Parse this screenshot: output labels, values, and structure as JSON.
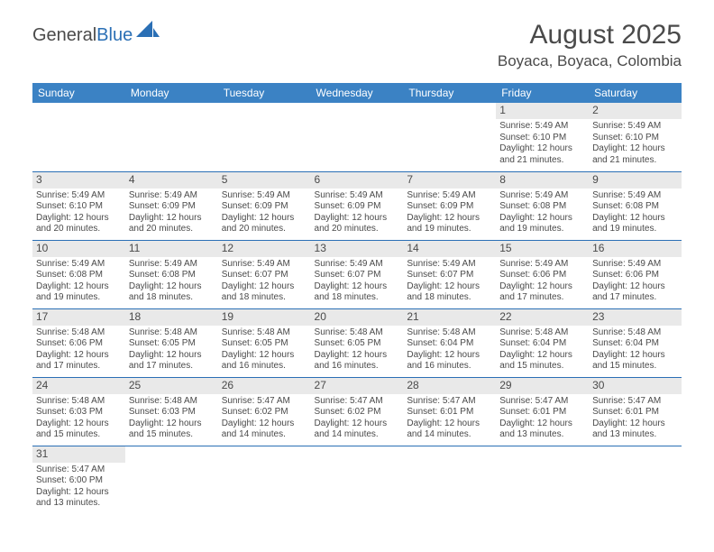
{
  "logo": {
    "part1": "General",
    "part2": "Blue"
  },
  "title": "August 2025",
  "location": "Boyaca, Boyaca, Colombia",
  "colors": {
    "header_bg": "#3b82c4",
    "header_text": "#ffffff",
    "rule": "#2a6fb5",
    "daybar": "#e9e9e9",
    "text": "#4a4a4a",
    "logo_blue": "#2a6fb5"
  },
  "weekdays": [
    "Sunday",
    "Monday",
    "Tuesday",
    "Wednesday",
    "Thursday",
    "Friday",
    "Saturday"
  ],
  "weeks": [
    [
      null,
      null,
      null,
      null,
      null,
      {
        "n": "1",
        "sr": "Sunrise: 5:49 AM",
        "ss": "Sunset: 6:10 PM",
        "d1": "Daylight: 12 hours",
        "d2": "and 21 minutes."
      },
      {
        "n": "2",
        "sr": "Sunrise: 5:49 AM",
        "ss": "Sunset: 6:10 PM",
        "d1": "Daylight: 12 hours",
        "d2": "and 21 minutes."
      }
    ],
    [
      {
        "n": "3",
        "sr": "Sunrise: 5:49 AM",
        "ss": "Sunset: 6:10 PM",
        "d1": "Daylight: 12 hours",
        "d2": "and 20 minutes."
      },
      {
        "n": "4",
        "sr": "Sunrise: 5:49 AM",
        "ss": "Sunset: 6:09 PM",
        "d1": "Daylight: 12 hours",
        "d2": "and 20 minutes."
      },
      {
        "n": "5",
        "sr": "Sunrise: 5:49 AM",
        "ss": "Sunset: 6:09 PM",
        "d1": "Daylight: 12 hours",
        "d2": "and 20 minutes."
      },
      {
        "n": "6",
        "sr": "Sunrise: 5:49 AM",
        "ss": "Sunset: 6:09 PM",
        "d1": "Daylight: 12 hours",
        "d2": "and 20 minutes."
      },
      {
        "n": "7",
        "sr": "Sunrise: 5:49 AM",
        "ss": "Sunset: 6:09 PM",
        "d1": "Daylight: 12 hours",
        "d2": "and 19 minutes."
      },
      {
        "n": "8",
        "sr": "Sunrise: 5:49 AM",
        "ss": "Sunset: 6:08 PM",
        "d1": "Daylight: 12 hours",
        "d2": "and 19 minutes."
      },
      {
        "n": "9",
        "sr": "Sunrise: 5:49 AM",
        "ss": "Sunset: 6:08 PM",
        "d1": "Daylight: 12 hours",
        "d2": "and 19 minutes."
      }
    ],
    [
      {
        "n": "10",
        "sr": "Sunrise: 5:49 AM",
        "ss": "Sunset: 6:08 PM",
        "d1": "Daylight: 12 hours",
        "d2": "and 19 minutes."
      },
      {
        "n": "11",
        "sr": "Sunrise: 5:49 AM",
        "ss": "Sunset: 6:08 PM",
        "d1": "Daylight: 12 hours",
        "d2": "and 18 minutes."
      },
      {
        "n": "12",
        "sr": "Sunrise: 5:49 AM",
        "ss": "Sunset: 6:07 PM",
        "d1": "Daylight: 12 hours",
        "d2": "and 18 minutes."
      },
      {
        "n": "13",
        "sr": "Sunrise: 5:49 AM",
        "ss": "Sunset: 6:07 PM",
        "d1": "Daylight: 12 hours",
        "d2": "and 18 minutes."
      },
      {
        "n": "14",
        "sr": "Sunrise: 5:49 AM",
        "ss": "Sunset: 6:07 PM",
        "d1": "Daylight: 12 hours",
        "d2": "and 18 minutes."
      },
      {
        "n": "15",
        "sr": "Sunrise: 5:49 AM",
        "ss": "Sunset: 6:06 PM",
        "d1": "Daylight: 12 hours",
        "d2": "and 17 minutes."
      },
      {
        "n": "16",
        "sr": "Sunrise: 5:49 AM",
        "ss": "Sunset: 6:06 PM",
        "d1": "Daylight: 12 hours",
        "d2": "and 17 minutes."
      }
    ],
    [
      {
        "n": "17",
        "sr": "Sunrise: 5:48 AM",
        "ss": "Sunset: 6:06 PM",
        "d1": "Daylight: 12 hours",
        "d2": "and 17 minutes."
      },
      {
        "n": "18",
        "sr": "Sunrise: 5:48 AM",
        "ss": "Sunset: 6:05 PM",
        "d1": "Daylight: 12 hours",
        "d2": "and 17 minutes."
      },
      {
        "n": "19",
        "sr": "Sunrise: 5:48 AM",
        "ss": "Sunset: 6:05 PM",
        "d1": "Daylight: 12 hours",
        "d2": "and 16 minutes."
      },
      {
        "n": "20",
        "sr": "Sunrise: 5:48 AM",
        "ss": "Sunset: 6:05 PM",
        "d1": "Daylight: 12 hours",
        "d2": "and 16 minutes."
      },
      {
        "n": "21",
        "sr": "Sunrise: 5:48 AM",
        "ss": "Sunset: 6:04 PM",
        "d1": "Daylight: 12 hours",
        "d2": "and 16 minutes."
      },
      {
        "n": "22",
        "sr": "Sunrise: 5:48 AM",
        "ss": "Sunset: 6:04 PM",
        "d1": "Daylight: 12 hours",
        "d2": "and 15 minutes."
      },
      {
        "n": "23",
        "sr": "Sunrise: 5:48 AM",
        "ss": "Sunset: 6:04 PM",
        "d1": "Daylight: 12 hours",
        "d2": "and 15 minutes."
      }
    ],
    [
      {
        "n": "24",
        "sr": "Sunrise: 5:48 AM",
        "ss": "Sunset: 6:03 PM",
        "d1": "Daylight: 12 hours",
        "d2": "and 15 minutes."
      },
      {
        "n": "25",
        "sr": "Sunrise: 5:48 AM",
        "ss": "Sunset: 6:03 PM",
        "d1": "Daylight: 12 hours",
        "d2": "and 15 minutes."
      },
      {
        "n": "26",
        "sr": "Sunrise: 5:47 AM",
        "ss": "Sunset: 6:02 PM",
        "d1": "Daylight: 12 hours",
        "d2": "and 14 minutes."
      },
      {
        "n": "27",
        "sr": "Sunrise: 5:47 AM",
        "ss": "Sunset: 6:02 PM",
        "d1": "Daylight: 12 hours",
        "d2": "and 14 minutes."
      },
      {
        "n": "28",
        "sr": "Sunrise: 5:47 AM",
        "ss": "Sunset: 6:01 PM",
        "d1": "Daylight: 12 hours",
        "d2": "and 14 minutes."
      },
      {
        "n": "29",
        "sr": "Sunrise: 5:47 AM",
        "ss": "Sunset: 6:01 PM",
        "d1": "Daylight: 12 hours",
        "d2": "and 13 minutes."
      },
      {
        "n": "30",
        "sr": "Sunrise: 5:47 AM",
        "ss": "Sunset: 6:01 PM",
        "d1": "Daylight: 12 hours",
        "d2": "and 13 minutes."
      }
    ],
    [
      {
        "n": "31",
        "sr": "Sunrise: 5:47 AM",
        "ss": "Sunset: 6:00 PM",
        "d1": "Daylight: 12 hours",
        "d2": "and 13 minutes."
      },
      null,
      null,
      null,
      null,
      null,
      null
    ]
  ]
}
